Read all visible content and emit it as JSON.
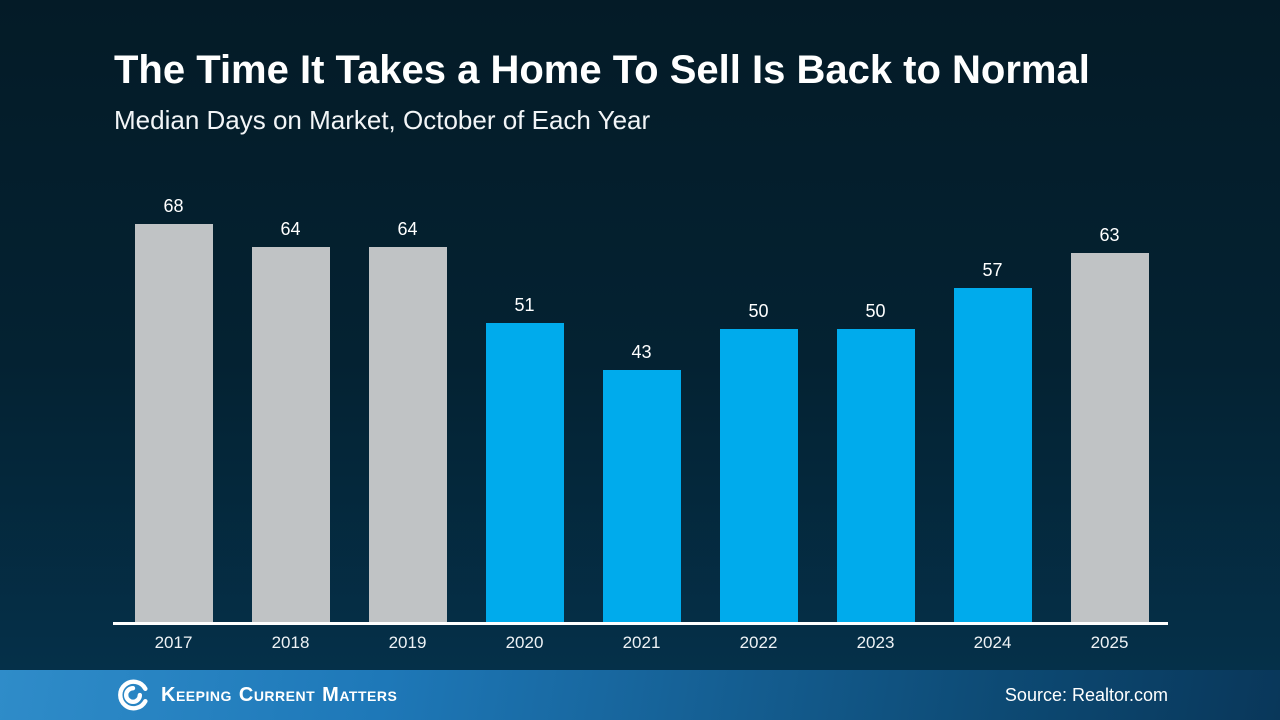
{
  "chart_data": {
    "type": "bar",
    "title": "The Time It Takes a Home To Sell Is Back to Normal",
    "subtitle": "Median Days on Market, October of Each Year",
    "categories": [
      "2017",
      "2018",
      "2019",
      "2020",
      "2021",
      "2022",
      "2023",
      "2024",
      "2025"
    ],
    "values": [
      68,
      64,
      64,
      51,
      43,
      50,
      50,
      57,
      63
    ],
    "bar_colors": [
      "gray",
      "gray",
      "gray",
      "blue",
      "blue",
      "blue",
      "blue",
      "blue",
      "gray"
    ],
    "colors": {
      "gray": "#c0c3c5",
      "blue": "#00abec"
    },
    "ylim": [
      0,
      68
    ],
    "xlabel": "",
    "ylabel": "",
    "grid": false,
    "legend": false,
    "value_labels": true
  },
  "footer": {
    "logo_words": [
      "Keeping",
      "Current",
      "Matters"
    ],
    "source": "Source: Realtor.com"
  },
  "theme": {
    "background_top": "#041b27",
    "background_bottom": "#053049",
    "footer_blue_left": "#1e78b8",
    "footer_blue_right": "#09375a",
    "text_color": "#ffffff"
  }
}
